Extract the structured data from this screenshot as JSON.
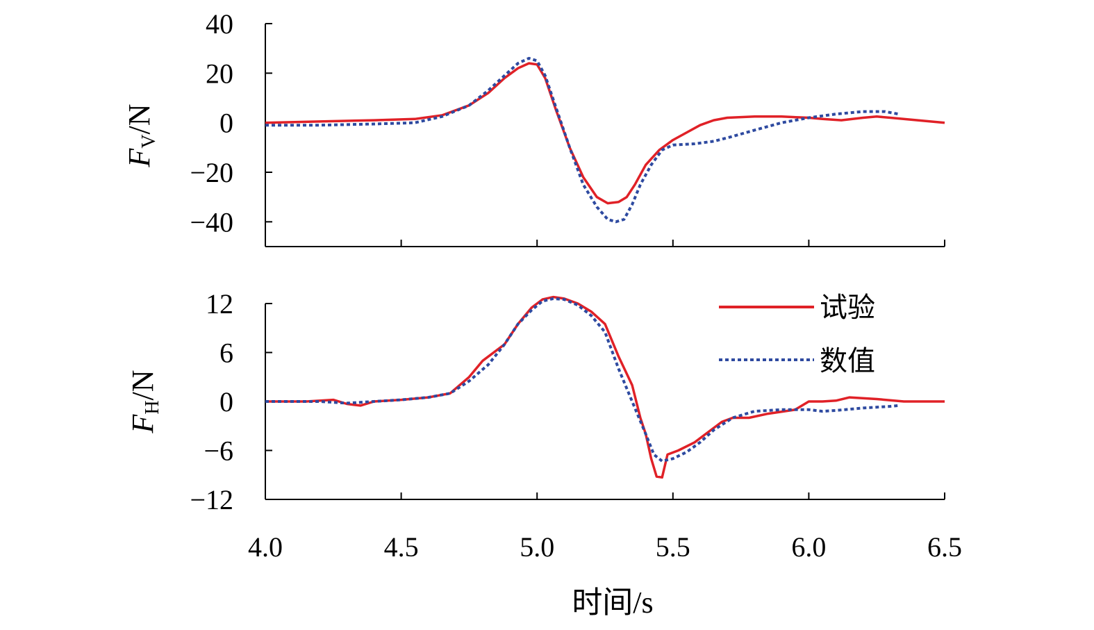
{
  "chart_data": [
    {
      "type": "line",
      "ylabel_main": "F",
      "ylabel_sub": "V",
      "ylabel_unit": "/N",
      "ylim": [
        -50,
        40
      ],
      "yticks": [
        40,
        20,
        0,
        -20,
        -40
      ],
      "ytick_labels": [
        "40",
        "20",
        "0",
        "−20",
        "−40"
      ],
      "xlim": [
        4.0,
        6.5
      ],
      "xticks": [
        4.0,
        4.5,
        5.0,
        5.5,
        6.0,
        6.5
      ],
      "series": [
        {
          "name": "试验",
          "color": "#e02127",
          "style": "solid",
          "x": [
            4.0,
            4.2,
            4.4,
            4.55,
            4.65,
            4.75,
            4.82,
            4.88,
            4.93,
            4.97,
            5.0,
            5.03,
            5.07,
            5.12,
            5.17,
            5.22,
            5.26,
            5.3,
            5.33,
            5.36,
            5.4,
            5.45,
            5.5,
            5.55,
            5.6,
            5.65,
            5.7,
            5.8,
            5.9,
            6.0,
            6.05,
            6.12,
            6.2,
            6.25,
            6.3,
            6.4,
            6.5
          ],
          "y": [
            0,
            0.5,
            1,
            1.5,
            3,
            7,
            12,
            18,
            22,
            24,
            23.5,
            18,
            5,
            -10,
            -22,
            -30,
            -32.5,
            -32,
            -30,
            -25,
            -17,
            -11,
            -7,
            -4,
            -1,
            1,
            2,
            2.5,
            2.5,
            2,
            1.5,
            1,
            2,
            2.5,
            2,
            1,
            0
          ]
        },
        {
          "name": "数值",
          "color": "#2e4aa0",
          "style": "dotted",
          "x": [
            4.0,
            4.2,
            4.4,
            4.55,
            4.65,
            4.75,
            4.82,
            4.88,
            4.93,
            4.97,
            5.0,
            5.03,
            5.07,
            5.12,
            5.17,
            5.22,
            5.26,
            5.29,
            5.32,
            5.35,
            5.38,
            5.42,
            5.46,
            5.5,
            5.58,
            5.65,
            5.72,
            5.8,
            5.9,
            6.0,
            6.1,
            6.2,
            6.28,
            6.33
          ],
          "y": [
            -1,
            -1,
            -0.5,
            0,
            2.5,
            7,
            13,
            19,
            24,
            26,
            25,
            19,
            6,
            -10,
            -25,
            -34,
            -39,
            -40,
            -39,
            -33,
            -25,
            -17,
            -11,
            -9,
            -8.5,
            -7.5,
            -5.5,
            -3,
            0,
            2,
            3.5,
            4.5,
            4.5,
            3.5
          ]
        }
      ]
    },
    {
      "type": "line",
      "ylabel_main": "F",
      "ylabel_sub": "H",
      "ylabel_unit": "/N",
      "ylim": [
        -12,
        12
      ],
      "yticks": [
        12,
        6,
        0,
        -6,
        -12
      ],
      "ytick_labels": [
        "12",
        "6",
        "0",
        "−6",
        "−12"
      ],
      "xlim": [
        4.0,
        6.5
      ],
      "xticks": [
        4.0,
        4.5,
        5.0,
        5.5,
        6.0,
        6.5
      ],
      "xtick_labels": [
        "4.0",
        "4.5",
        "5.0",
        "5.5",
        "6.0",
        "6.5"
      ],
      "xlabel": "时间/s",
      "series": [
        {
          "name": "试验",
          "color": "#e02127",
          "style": "solid",
          "x": [
            4.0,
            4.15,
            4.25,
            4.3,
            4.35,
            4.4,
            4.5,
            4.6,
            4.68,
            4.75,
            4.8,
            4.88,
            4.93,
            4.98,
            5.02,
            5.06,
            5.1,
            5.15,
            5.2,
            5.25,
            5.3,
            5.35,
            5.38,
            5.4,
            5.42,
            5.44,
            5.46,
            5.48,
            5.52,
            5.58,
            5.62,
            5.68,
            5.72,
            5.78,
            5.85,
            5.95,
            6.0,
            6.05,
            6.1,
            6.15,
            6.25,
            6.35,
            6.5
          ],
          "y": [
            0,
            0,
            0.2,
            -0.3,
            -0.5,
            0,
            0.2,
            0.5,
            1,
            3,
            5,
            7,
            9.5,
            11.5,
            12.5,
            12.8,
            12.6,
            12,
            11,
            9.5,
            5.5,
            2,
            -2,
            -4,
            -7,
            -9.2,
            -9.3,
            -6.5,
            -6,
            -5,
            -4,
            -2.5,
            -2,
            -2,
            -1.5,
            -1,
            0,
            0,
            0.1,
            0.5,
            0.3,
            0,
            0
          ]
        },
        {
          "name": "数值",
          "color": "#2e4aa0",
          "style": "dotted",
          "x": [
            4.0,
            4.2,
            4.3,
            4.4,
            4.5,
            4.6,
            4.68,
            4.75,
            4.82,
            4.88,
            4.93,
            4.98,
            5.02,
            5.06,
            5.1,
            5.15,
            5.2,
            5.25,
            5.3,
            5.35,
            5.4,
            5.43,
            5.46,
            5.5,
            5.55,
            5.6,
            5.65,
            5.72,
            5.8,
            5.9,
            6.0,
            6.05,
            6.1,
            6.2,
            6.3,
            6.33
          ],
          "y": [
            0,
            0,
            -0.2,
            0,
            0.2,
            0.5,
            1,
            2.5,
            4.5,
            7,
            9.5,
            11.2,
            12.3,
            12.6,
            12.5,
            11.8,
            10.5,
            8.5,
            4,
            0,
            -4,
            -6.5,
            -7.3,
            -7,
            -6.2,
            -5,
            -3.5,
            -2,
            -1.2,
            -1,
            -1,
            -1.2,
            -1.1,
            -0.8,
            -0.6,
            -0.5
          ]
        }
      ]
    }
  ],
  "legend": {
    "items": [
      {
        "label": "试验",
        "color": "#e02127",
        "style": "solid"
      },
      {
        "label": "数值",
        "color": "#2e4aa0",
        "style": "dotted"
      }
    ]
  }
}
